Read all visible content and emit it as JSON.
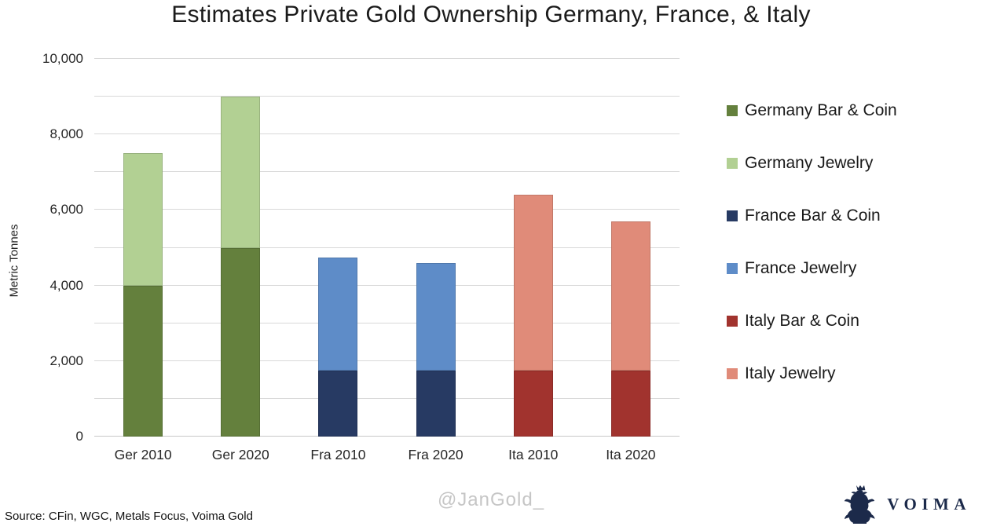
{
  "watermark": "@JanGold_",
  "source": "Source: CFin, WGC, Metals Focus, Voima Gold",
  "logo": {
    "icon": "heraldic-lion-icon",
    "text": "VOIMA",
    "color": "#1C2A4A"
  },
  "chart_data": {
    "type": "bar",
    "stacked": true,
    "title": "Estimates Private Gold Ownership Germany, France, & Italy",
    "xlabel": "",
    "ylabel": "Metric Tonnes",
    "ylim": [
      0,
      10000
    ],
    "grid": true,
    "grid_step": 1000,
    "legend_position": "right",
    "y_ticks": [
      {
        "value": 0,
        "label": "0"
      },
      {
        "value": 2000,
        "label": "2,000"
      },
      {
        "value": 4000,
        "label": "4,000"
      },
      {
        "value": 6000,
        "label": "6,000"
      },
      {
        "value": 8000,
        "label": "8,000"
      },
      {
        "value": 10000,
        "label": "10,000"
      }
    ],
    "categories": [
      "Ger 2010",
      "Ger 2020",
      "Fra 2010",
      "Fra 2020",
      "Ita 2010",
      "Ita 2020"
    ],
    "series": [
      {
        "name": "Germany Bar & Coin",
        "color": "#64803D",
        "values": [
          4000,
          5000,
          0,
          0,
          0,
          0
        ]
      },
      {
        "name": "Germany Jewelry",
        "color": "#B2D093",
        "values": [
          3500,
          4000,
          0,
          0,
          0,
          0
        ]
      },
      {
        "name": "France Bar & Coin",
        "color": "#273A63",
        "values": [
          0,
          0,
          1750,
          1750,
          0,
          0
        ]
      },
      {
        "name": "France Jewelry",
        "color": "#5E8CC8",
        "values": [
          0,
          0,
          3000,
          2850,
          0,
          0
        ]
      },
      {
        "name": "Italy Bar & Coin",
        "color": "#A1332E",
        "values": [
          0,
          0,
          0,
          0,
          1750,
          1750
        ]
      },
      {
        "name": "Italy Jewelry",
        "color": "#E08B79",
        "values": [
          0,
          0,
          0,
          0,
          4650,
          3950
        ]
      }
    ],
    "totals": [
      7500,
      9000,
      4750,
      4600,
      6400,
      5700
    ]
  }
}
